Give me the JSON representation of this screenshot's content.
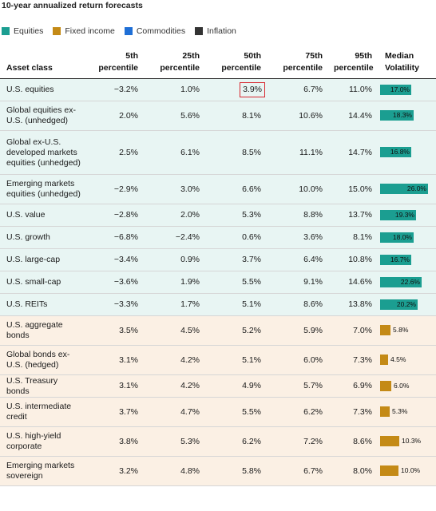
{
  "title": "10-year annualized return forecasts",
  "legend": [
    {
      "label": "Equities",
      "color": "#1b9e91"
    },
    {
      "label": "Fixed income",
      "color": "#c48a16"
    },
    {
      "label": "Commodities",
      "color": "#1f6fd6"
    },
    {
      "label": "Inflation",
      "color": "#333333"
    }
  ],
  "highlight": {
    "row": 0,
    "column": "p50"
  },
  "chart_data": {
    "type": "table",
    "title": "10-year annualized return forecasts",
    "columns": [
      "Asset class",
      "5th percentile",
      "25th percentile",
      "50th percentile",
      "75th percentile",
      "95th percentile",
      "Median Volatility"
    ],
    "rows": [
      {
        "asset": "U.S. equities",
        "category": "Equities",
        "p5": "−3.2%",
        "p25": "1.0%",
        "p50": "3.9%",
        "p75": "6.7%",
        "p95": "11.0%",
        "vol": 17.0,
        "vol_label": "17.0%"
      },
      {
        "asset": "Global equities ex-U.S. (unhedged)",
        "category": "Equities",
        "p5": "2.0%",
        "p25": "5.6%",
        "p50": "8.1%",
        "p75": "10.6%",
        "p95": "14.4%",
        "vol": 18.3,
        "vol_label": "18.3%"
      },
      {
        "asset": "Global ex-U.S. developed markets equities (unhedged)",
        "category": "Equities",
        "p5": "2.5%",
        "p25": "6.1%",
        "p50": "8.5%",
        "p75": "11.1%",
        "p95": "14.7%",
        "vol": 16.8,
        "vol_label": "16.8%"
      },
      {
        "asset": "Emerging markets equities (unhedged)",
        "category": "Equities",
        "p5": "−2.9%",
        "p25": "3.0%",
        "p50": "6.6%",
        "p75": "10.0%",
        "p95": "15.0%",
        "vol": 26.0,
        "vol_label": "26.0%"
      },
      {
        "asset": "U.S. value",
        "category": "Equities",
        "p5": "−2.8%",
        "p25": "2.0%",
        "p50": "5.3%",
        "p75": "8.8%",
        "p95": "13.7%",
        "vol": 19.3,
        "vol_label": "19.3%"
      },
      {
        "asset": "U.S. growth",
        "category": "Equities",
        "p5": "−6.8%",
        "p25": "−2.4%",
        "p50": "0.6%",
        "p75": "3.6%",
        "p95": "8.1%",
        "vol": 18.0,
        "vol_label": "18.0%"
      },
      {
        "asset": "U.S. large-cap",
        "category": "Equities",
        "p5": "−3.4%",
        "p25": "0.9%",
        "p50": "3.7%",
        "p75": "6.4%",
        "p95": "10.8%",
        "vol": 16.7,
        "vol_label": "16.7%"
      },
      {
        "asset": "U.S. small-cap",
        "category": "Equities",
        "p5": "−3.6%",
        "p25": "1.9%",
        "p50": "5.5%",
        "p75": "9.1%",
        "p95": "14.6%",
        "vol": 22.6,
        "vol_label": "22.6%"
      },
      {
        "asset": "U.S. REITs",
        "category": "Equities",
        "p5": "−3.3%",
        "p25": "1.7%",
        "p50": "5.1%",
        "p75": "8.6%",
        "p95": "13.8%",
        "vol": 20.2,
        "vol_label": "20.2%"
      },
      {
        "asset": "U.S. aggregate bonds",
        "category": "Fixed income",
        "p5": "3.5%",
        "p25": "4.5%",
        "p50": "5.2%",
        "p75": "5.9%",
        "p95": "7.0%",
        "vol": 5.8,
        "vol_label": "5.8%"
      },
      {
        "asset": "Global bonds ex-U.S. (hedged)",
        "category": "Fixed income",
        "p5": "3.1%",
        "p25": "4.2%",
        "p50": "5.1%",
        "p75": "6.0%",
        "p95": "7.3%",
        "vol": 4.5,
        "vol_label": "4.5%"
      },
      {
        "asset": "U.S. Treasury bonds",
        "category": "Fixed income",
        "p5": "3.1%",
        "p25": "4.2%",
        "p50": "4.9%",
        "p75": "5.7%",
        "p95": "6.9%",
        "vol": 6.0,
        "vol_label": "6.0%"
      },
      {
        "asset": "U.S. intermediate credit",
        "category": "Fixed income",
        "p5": "3.7%",
        "p25": "4.7%",
        "p50": "5.5%",
        "p75": "6.2%",
        "p95": "7.3%",
        "vol": 5.3,
        "vol_label": "5.3%"
      },
      {
        "asset": "U.S. high-yield corporate",
        "category": "Fixed income",
        "p5": "3.8%",
        "p25": "5.3%",
        "p50": "6.2%",
        "p75": "7.2%",
        "p95": "8.6%",
        "vol": 10.3,
        "vol_label": "10.3%"
      },
      {
        "asset": "Emerging markets sovereign",
        "category": "Fixed income",
        "p5": "3.2%",
        "p25": "4.8%",
        "p50": "5.8%",
        "p75": "6.7%",
        "p95": "8.0%",
        "vol": 10.0,
        "vol_label": "10.0%"
      }
    ],
    "header_lines": [
      {
        "l1": "",
        "l2": "Asset class"
      },
      {
        "l1": "5th",
        "l2": "percentile"
      },
      {
        "l1": "25th",
        "l2": "percentile"
      },
      {
        "l1": "50th",
        "l2": "percentile"
      },
      {
        "l1": "75th",
        "l2": "percentile"
      },
      {
        "l1": "95th",
        "l2": "percentile"
      },
      {
        "l1": "Median",
        "l2": "Volatility"
      }
    ]
  }
}
